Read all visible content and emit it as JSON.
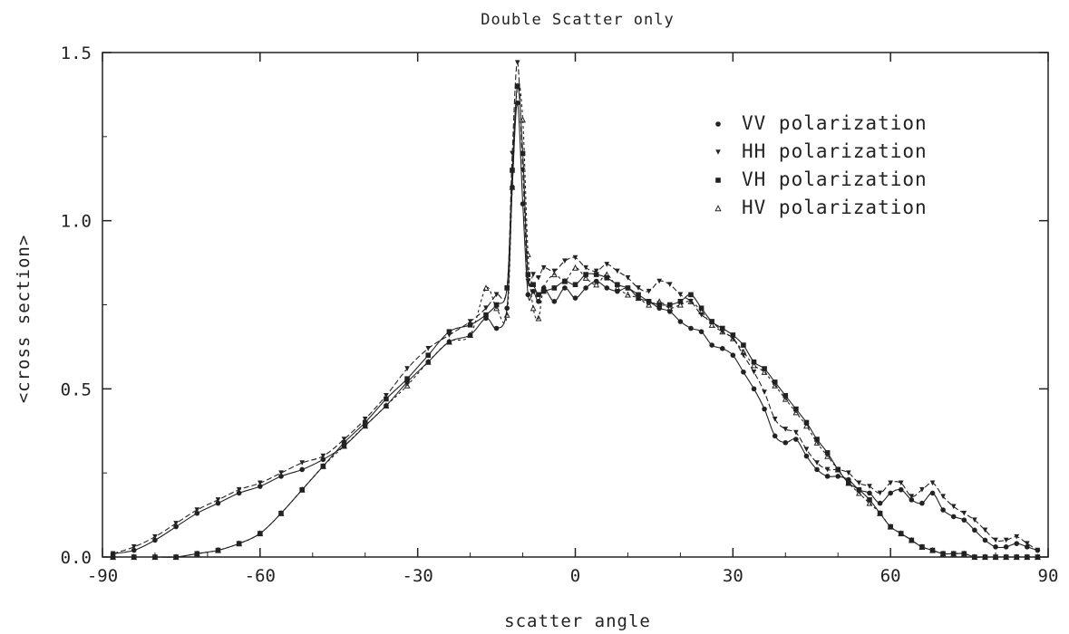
{
  "chart_data": {
    "type": "line",
    "title": "Double Scatter only",
    "xlabel": "scatter angle",
    "ylabel": "<cross section>",
    "xlim": [
      -90,
      90
    ],
    "ylim": [
      0,
      1.5
    ],
    "xticks": [
      -90,
      -60,
      -30,
      0,
      30,
      60,
      90
    ],
    "xtick_labels": [
      "-90",
      "-60",
      "-30",
      "0",
      "30",
      "60",
      "90"
    ],
    "yticks": [
      0,
      0.5,
      1.0,
      1.5
    ],
    "ytick_labels": [
      "0.0",
      "0.5",
      "1.0",
      "1.5"
    ],
    "grid": false,
    "legend_position": "top-right",
    "colors": {
      "line": "#222222",
      "axis": "#222222"
    },
    "series": [
      {
        "name": "VV polarization",
        "marker": "circle",
        "x": [
          -88,
          -84,
          -80,
          -76,
          -72,
          -68,
          -64,
          -60,
          -56,
          -52,
          -48,
          -44,
          -40,
          -36,
          -32,
          -28,
          -24,
          -20,
          -17,
          -15,
          -13,
          -12,
          -11,
          -10,
          -9,
          -8,
          -7,
          -6,
          -4,
          -2,
          0,
          2,
          4,
          6,
          8,
          10,
          12,
          14,
          16,
          18,
          20,
          22,
          24,
          26,
          28,
          30,
          32,
          34,
          36,
          38,
          40,
          42,
          44,
          46,
          48,
          50,
          52,
          54,
          56,
          58,
          60,
          62,
          64,
          66,
          68,
          70,
          72,
          74,
          76,
          78,
          80,
          82,
          84,
          86,
          88
        ],
        "values": [
          0.01,
          0.02,
          0.05,
          0.09,
          0.13,
          0.16,
          0.19,
          0.21,
          0.24,
          0.26,
          0.29,
          0.33,
          0.39,
          0.45,
          0.52,
          0.58,
          0.64,
          0.66,
          0.71,
          0.68,
          0.74,
          1.1,
          1.35,
          1.05,
          0.78,
          0.79,
          0.76,
          0.8,
          0.76,
          0.8,
          0.77,
          0.8,
          0.82,
          0.8,
          0.79,
          0.8,
          0.77,
          0.76,
          0.74,
          0.73,
          0.7,
          0.68,
          0.67,
          0.63,
          0.62,
          0.6,
          0.55,
          0.5,
          0.44,
          0.36,
          0.34,
          0.35,
          0.3,
          0.26,
          0.24,
          0.24,
          0.23,
          0.2,
          0.19,
          0.16,
          0.19,
          0.2,
          0.17,
          0.16,
          0.19,
          0.14,
          0.12,
          0.11,
          0.08,
          0.05,
          0.03,
          0.03,
          0.04,
          0.03,
          0.02
        ]
      },
      {
        "name": "HH polarization",
        "marker": "triangle-down",
        "x": [
          -88,
          -84,
          -80,
          -76,
          -72,
          -68,
          -64,
          -60,
          -56,
          -52,
          -48,
          -44,
          -40,
          -36,
          -32,
          -28,
          -24,
          -20,
          -17,
          -15,
          -13,
          -12,
          -11,
          -10,
          -9,
          -8,
          -7,
          -6,
          -4,
          -2,
          0,
          2,
          4,
          6,
          8,
          10,
          12,
          14,
          16,
          18,
          20,
          22,
          24,
          26,
          28,
          30,
          32,
          34,
          36,
          38,
          40,
          42,
          44,
          46,
          48,
          50,
          52,
          54,
          56,
          58,
          60,
          62,
          64,
          66,
          68,
          70,
          72,
          74,
          76,
          78,
          80,
          82,
          84,
          86,
          88
        ],
        "values": [
          0.01,
          0.03,
          0.06,
          0.1,
          0.14,
          0.17,
          0.2,
          0.22,
          0.25,
          0.28,
          0.3,
          0.35,
          0.41,
          0.48,
          0.56,
          0.62,
          0.66,
          0.7,
          0.74,
          0.78,
          0.8,
          1.2,
          1.47,
          1.15,
          0.82,
          0.84,
          0.83,
          0.86,
          0.85,
          0.88,
          0.89,
          0.86,
          0.85,
          0.87,
          0.85,
          0.83,
          0.8,
          0.79,
          0.82,
          0.81,
          0.78,
          0.76,
          0.72,
          0.7,
          0.67,
          0.65,
          0.6,
          0.55,
          0.49,
          0.41,
          0.38,
          0.37,
          0.32,
          0.28,
          0.26,
          0.26,
          0.25,
          0.22,
          0.21,
          0.19,
          0.22,
          0.22,
          0.18,
          0.2,
          0.22,
          0.18,
          0.15,
          0.13,
          0.11,
          0.08,
          0.05,
          0.05,
          0.06,
          0.04,
          0.02
        ]
      },
      {
        "name": "VH polarization",
        "marker": "square",
        "x": [
          -88,
          -84,
          -80,
          -76,
          -72,
          -68,
          -64,
          -60,
          -56,
          -52,
          -48,
          -44,
          -40,
          -36,
          -32,
          -28,
          -24,
          -20,
          -17,
          -15,
          -13,
          -12,
          -11,
          -10,
          -9,
          -8,
          -7,
          -6,
          -4,
          -2,
          0,
          2,
          4,
          6,
          8,
          10,
          12,
          14,
          16,
          18,
          20,
          22,
          24,
          26,
          28,
          30,
          32,
          34,
          36,
          38,
          40,
          42,
          44,
          46,
          48,
          50,
          52,
          54,
          56,
          58,
          60,
          62,
          64,
          66,
          68,
          70,
          72,
          74,
          76,
          78,
          80,
          82,
          84,
          86,
          88
        ],
        "values": [
          0.0,
          0.0,
          0.0,
          0.0,
          0.01,
          0.02,
          0.04,
          0.07,
          0.13,
          0.2,
          0.27,
          0.34,
          0.4,
          0.47,
          0.53,
          0.6,
          0.67,
          0.69,
          0.72,
          0.75,
          0.8,
          1.15,
          1.4,
          1.2,
          0.84,
          0.81,
          0.78,
          0.79,
          0.8,
          0.82,
          0.81,
          0.84,
          0.84,
          0.83,
          0.81,
          0.8,
          0.78,
          0.76,
          0.75,
          0.75,
          0.76,
          0.78,
          0.74,
          0.7,
          0.68,
          0.66,
          0.63,
          0.58,
          0.56,
          0.52,
          0.48,
          0.44,
          0.4,
          0.35,
          0.31,
          0.26,
          0.22,
          0.2,
          0.17,
          0.13,
          0.09,
          0.07,
          0.05,
          0.03,
          0.02,
          0.01,
          0.01,
          0.01,
          0.0,
          0.0,
          0.0,
          0.0,
          0.0,
          0.0,
          0.0
        ]
      },
      {
        "name": "HV polarization",
        "marker": "triangle-up",
        "x": [
          -88,
          -84,
          -80,
          -76,
          -72,
          -68,
          -64,
          -60,
          -56,
          -52,
          -48,
          -44,
          -40,
          -36,
          -32,
          -28,
          -24,
          -20,
          -17,
          -15,
          -13,
          -12,
          -11,
          -10,
          -9,
          -8,
          -7,
          -6,
          -4,
          -2,
          0,
          2,
          4,
          6,
          8,
          10,
          12,
          14,
          16,
          18,
          20,
          22,
          24,
          26,
          28,
          30,
          32,
          34,
          36,
          38,
          40,
          42,
          44,
          46,
          48,
          50,
          52,
          54,
          56,
          58,
          60,
          62,
          64,
          66,
          68,
          70,
          72,
          74,
          76,
          78,
          80,
          82,
          84,
          86,
          88
        ],
        "values": [
          0.0,
          0.0,
          0.0,
          0.0,
          0.01,
          0.02,
          0.04,
          0.07,
          0.13,
          0.2,
          0.27,
          0.33,
          0.39,
          0.45,
          0.51,
          0.58,
          0.64,
          0.66,
          0.8,
          0.74,
          0.72,
          1.1,
          1.4,
          1.3,
          0.9,
          0.74,
          0.71,
          0.8,
          0.84,
          0.82,
          0.86,
          0.83,
          0.81,
          0.84,
          0.8,
          0.78,
          0.77,
          0.75,
          0.76,
          0.74,
          0.75,
          0.76,
          0.73,
          0.69,
          0.67,
          0.65,
          0.61,
          0.57,
          0.55,
          0.51,
          0.47,
          0.43,
          0.39,
          0.34,
          0.3,
          0.26,
          0.22,
          0.19,
          0.16,
          0.13,
          0.09,
          0.07,
          0.05,
          0.03,
          0.02,
          0.01,
          0.01,
          0.01,
          0.0,
          0.0,
          0.0,
          0.0,
          0.0,
          0.0,
          0.0
        ]
      }
    ]
  }
}
